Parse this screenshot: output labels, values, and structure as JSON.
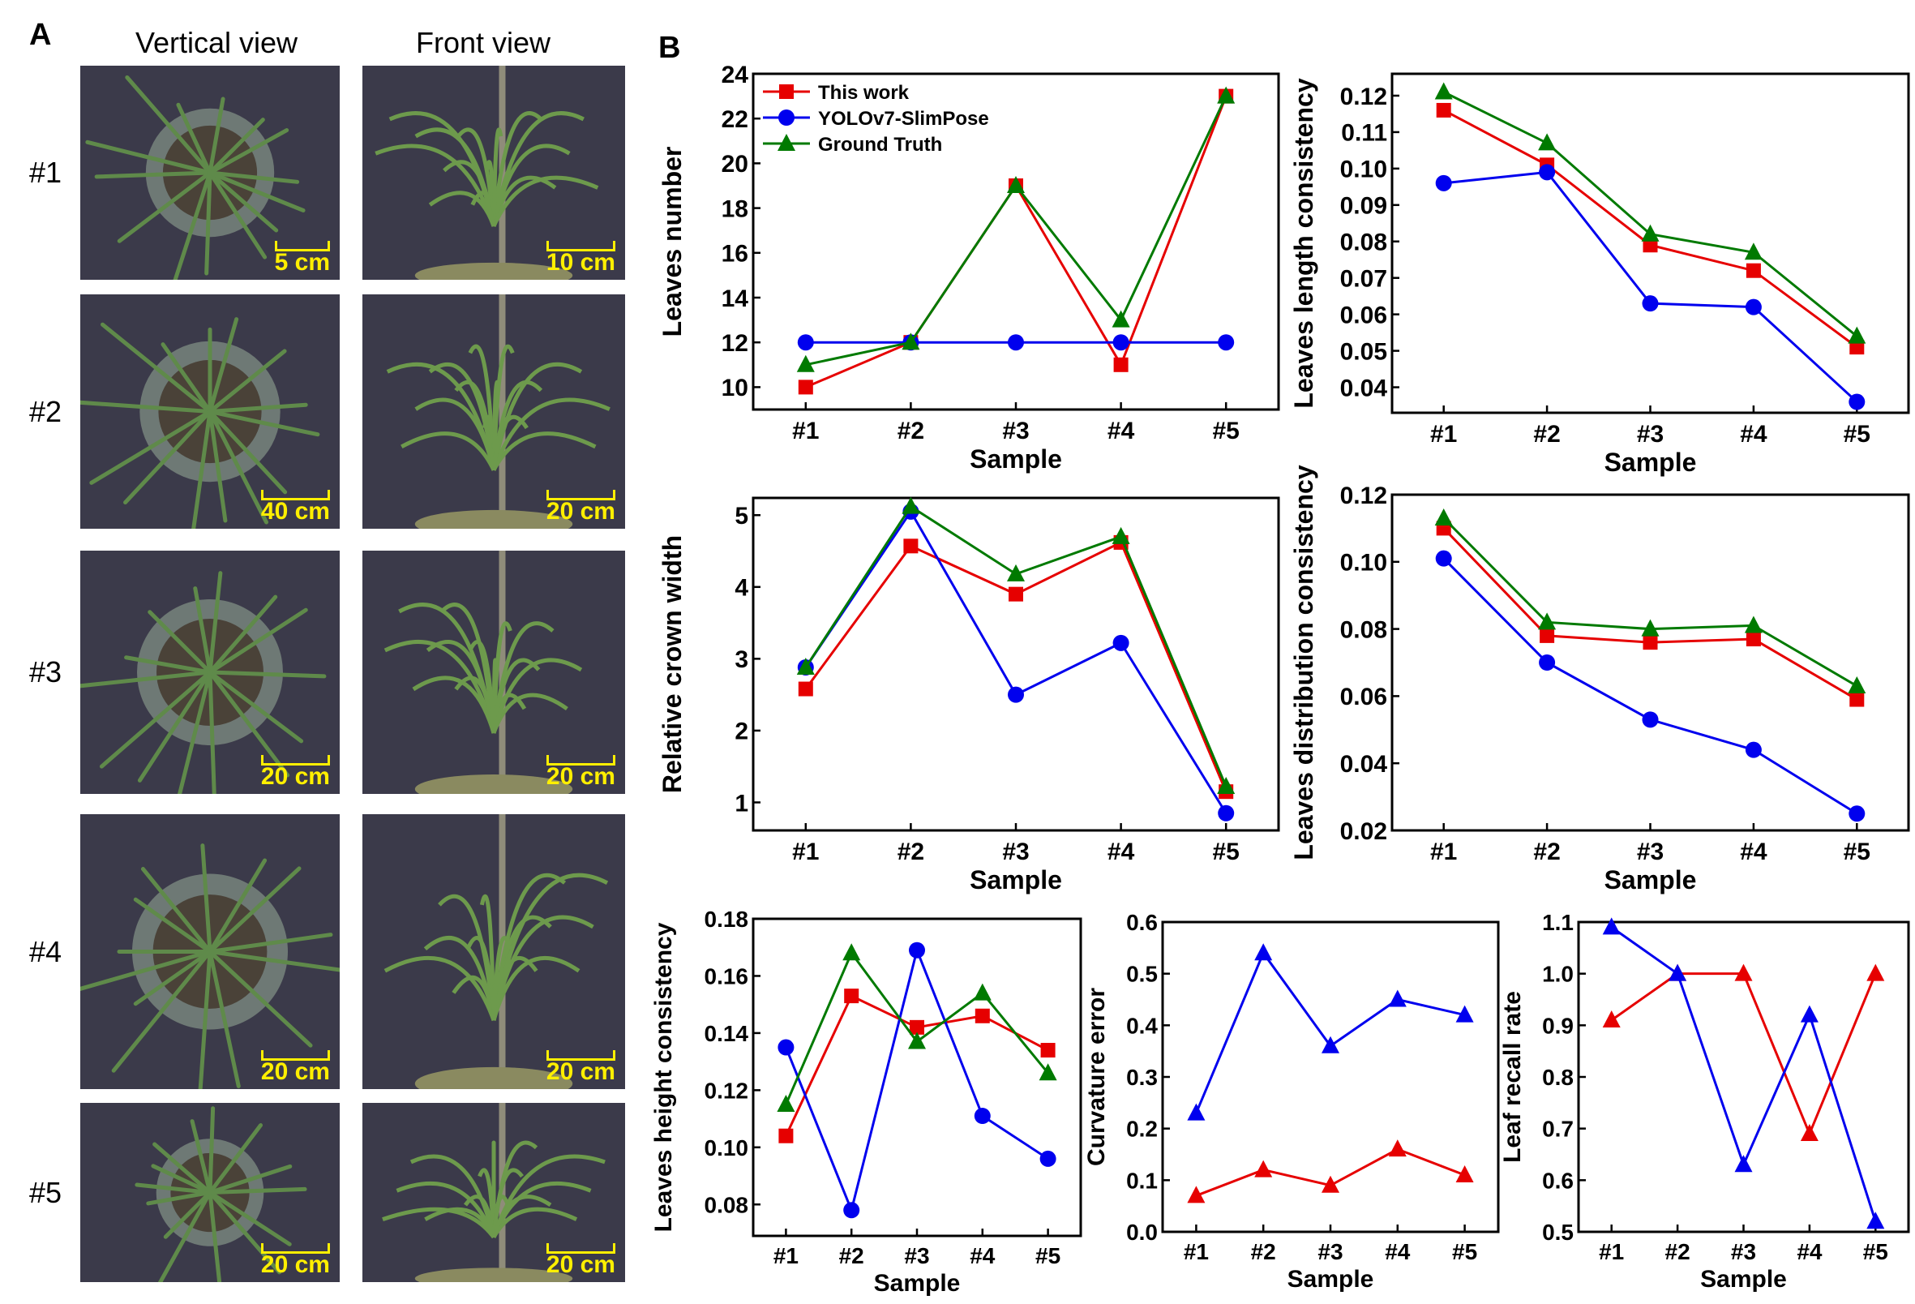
{
  "panel_a": {
    "label": "A",
    "column_headers": [
      "Vertical view",
      "Front view"
    ],
    "rows": [
      {
        "label": "#1",
        "vertical_scale": "5 cm",
        "front_scale": "10 cm"
      },
      {
        "label": "#2",
        "vertical_scale": "40 cm",
        "front_scale": "20 cm"
      },
      {
        "label": "#3",
        "vertical_scale": "20 cm",
        "front_scale": "20 cm"
      },
      {
        "label": "#4",
        "vertical_scale": "20 cm",
        "front_scale": "20 cm"
      },
      {
        "label": "#5",
        "vertical_scale": "20 cm",
        "front_scale": "20 cm"
      }
    ]
  },
  "panel_b": {
    "label": "B"
  },
  "colors": {
    "this_work": "#e60000",
    "yolo": "#0000ee",
    "ground_truth": "#007a00",
    "scale_bar": "#ffef00"
  },
  "chart_data": [
    {
      "type": "line",
      "title": "",
      "xlabel": "Sample",
      "ylabel": "Leaves number",
      "categories": [
        "#1",
        "#2",
        "#3",
        "#4",
        "#5"
      ],
      "ylim": [
        9,
        24
      ],
      "yticks": [
        "10",
        "12",
        "14",
        "16",
        "18",
        "20",
        "22",
        "24"
      ],
      "ytick_values": [
        10,
        12,
        14,
        16,
        18,
        20,
        22,
        24
      ],
      "legend": "top-left",
      "series": [
        {
          "name": "This work",
          "color": "#e60000",
          "marker": "square",
          "values": [
            10,
            12,
            19,
            11,
            23
          ]
        },
        {
          "name": "YOLOv7-SlimPose",
          "color": "#0000ee",
          "marker": "circle",
          "values": [
            12,
            12,
            12,
            12,
            12
          ]
        },
        {
          "name": "Ground Truth",
          "color": "#007a00",
          "marker": "triangle",
          "values": [
            11,
            12,
            19,
            13,
            23
          ]
        }
      ]
    },
    {
      "type": "line",
      "title": "",
      "xlabel": "Sample",
      "ylabel": "Leaves length consistency",
      "categories": [
        "#1",
        "#2",
        "#3",
        "#4",
        "#5"
      ],
      "ylim": [
        0.033,
        0.126
      ],
      "yticks": [
        "0.04",
        "0.05",
        "0.06",
        "0.07",
        "0.08",
        "0.09",
        "0.10",
        "0.11",
        "0.12"
      ],
      "ytick_values": [
        0.04,
        0.05,
        0.06,
        0.07,
        0.08,
        0.09,
        0.1,
        0.11,
        0.12
      ],
      "series": [
        {
          "name": "This work",
          "color": "#e60000",
          "marker": "square",
          "values": [
            0.116,
            0.101,
            0.079,
            0.072,
            0.051
          ]
        },
        {
          "name": "YOLOv7-SlimPose",
          "color": "#0000ee",
          "marker": "circle",
          "values": [
            0.096,
            0.099,
            0.063,
            0.062,
            0.036
          ]
        },
        {
          "name": "Ground Truth",
          "color": "#007a00",
          "marker": "triangle",
          "values": [
            0.121,
            0.107,
            0.082,
            0.077,
            0.054
          ]
        }
      ]
    },
    {
      "type": "line",
      "title": "",
      "xlabel": "Sample",
      "ylabel": "Relative crown width",
      "categories": [
        "#1",
        "#2",
        "#3",
        "#4",
        "#5"
      ],
      "ylim": [
        0.61,
        5.24
      ],
      "yticks": [
        "1",
        "2",
        "3",
        "4",
        "5"
      ],
      "ytick_values": [
        1,
        2,
        3,
        4,
        5
      ],
      "series": [
        {
          "name": "This work",
          "color": "#e60000",
          "marker": "square",
          "values": [
            2.58,
            4.57,
            3.9,
            4.62,
            1.15
          ]
        },
        {
          "name": "YOLOv7-SlimPose",
          "color": "#0000ee",
          "marker": "circle",
          "values": [
            2.88,
            5.05,
            2.5,
            3.22,
            0.85
          ]
        },
        {
          "name": "Ground Truth",
          "color": "#007a00",
          "marker": "triangle",
          "values": [
            2.88,
            5.12,
            4.18,
            4.7,
            1.22
          ]
        }
      ]
    },
    {
      "type": "line",
      "title": "",
      "xlabel": "Sample",
      "ylabel": "Leaves distribution consistency",
      "categories": [
        "#1",
        "#2",
        "#3",
        "#4",
        "#5"
      ],
      "ylim": [
        0.02,
        0.12
      ],
      "yticks": [
        "0.02",
        "0.04",
        "0.06",
        "0.08",
        "0.10",
        "0.12"
      ],
      "ytick_values": [
        0.02,
        0.04,
        0.06,
        0.08,
        0.1,
        0.12
      ],
      "series": [
        {
          "name": "This work",
          "color": "#e60000",
          "marker": "square",
          "values": [
            0.11,
            0.078,
            0.076,
            0.077,
            0.059
          ]
        },
        {
          "name": "YOLOv7-SlimPose",
          "color": "#0000ee",
          "marker": "circle",
          "values": [
            0.101,
            0.07,
            0.053,
            0.044,
            0.025
          ]
        },
        {
          "name": "Ground Truth",
          "color": "#007a00",
          "marker": "triangle",
          "values": [
            0.113,
            0.082,
            0.08,
            0.081,
            0.063
          ]
        }
      ]
    },
    {
      "type": "line",
      "title": "",
      "xlabel": "Sample",
      "ylabel": "Leaves height consistency",
      "categories": [
        "#1",
        "#2",
        "#3",
        "#4",
        "#5"
      ],
      "ylim": [
        0.069,
        0.18
      ],
      "yticks": [
        "0.08",
        "0.10",
        "0.12",
        "0.14",
        "0.16",
        "0.18"
      ],
      "ytick_values": [
        0.08,
        0.1,
        0.12,
        0.14,
        0.16,
        0.18
      ],
      "series": [
        {
          "name": "This work",
          "color": "#e60000",
          "marker": "square",
          "values": [
            0.104,
            0.153,
            0.142,
            0.146,
            0.134
          ]
        },
        {
          "name": "YOLOv7-SlimPose",
          "color": "#0000ee",
          "marker": "circle",
          "values": [
            0.135,
            0.078,
            0.169,
            0.111,
            0.096
          ]
        },
        {
          "name": "Ground Truth",
          "color": "#007a00",
          "marker": "triangle",
          "values": [
            0.115,
            0.168,
            0.137,
            0.154,
            0.126
          ]
        }
      ]
    },
    {
      "type": "line",
      "title": "",
      "xlabel": "Sample",
      "ylabel": "Curvature error",
      "categories": [
        "#1",
        "#2",
        "#3",
        "#4",
        "#5"
      ],
      "ylim": [
        0,
        0.6
      ],
      "yticks": [
        "0.0",
        "0.1",
        "0.2",
        "0.3",
        "0.4",
        "0.5",
        "0.6"
      ],
      "ytick_values": [
        0,
        0.1,
        0.2,
        0.3,
        0.4,
        0.5,
        0.6
      ],
      "series": [
        {
          "name": "This work",
          "color": "#e60000",
          "marker": "triangle",
          "values": [
            0.07,
            0.12,
            0.09,
            0.16,
            0.11
          ]
        },
        {
          "name": "YOLOv7-SlimPose",
          "color": "#0000ee",
          "marker": "triangle",
          "values": [
            0.23,
            0.54,
            0.36,
            0.45,
            0.42
          ]
        }
      ]
    },
    {
      "type": "line",
      "title": "",
      "xlabel": "Sample",
      "ylabel": "Leaf recall rate",
      "categories": [
        "#1",
        "#2",
        "#3",
        "#4",
        "#5"
      ],
      "ylim": [
        0.5,
        1.1
      ],
      "yticks": [
        "0.5",
        "0.6",
        "0.7",
        "0.8",
        "0.9",
        "1.0",
        "1.1"
      ],
      "ytick_values": [
        0.5,
        0.6,
        0.7,
        0.8,
        0.9,
        1.0,
        1.1
      ],
      "series": [
        {
          "name": "This work",
          "color": "#e60000",
          "marker": "triangle",
          "values": [
            0.91,
            1.0,
            1.0,
            0.69,
            1.0
          ]
        },
        {
          "name": "YOLOv7-SlimPose",
          "color": "#0000ee",
          "marker": "triangle",
          "values": [
            1.09,
            1.0,
            0.63,
            0.92,
            0.52
          ]
        }
      ]
    }
  ]
}
